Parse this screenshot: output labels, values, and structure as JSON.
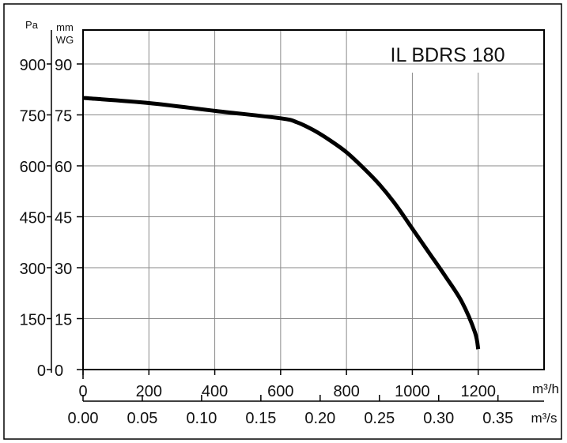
{
  "chart_data": {
    "type": "line",
    "title": "IL BDRS 180",
    "left_axis": {
      "unit": "Pa",
      "ticks": [
        0,
        150,
        300,
        450,
        600,
        750,
        900
      ]
    },
    "right_axis": {
      "unit_line1": "mm",
      "unit_line2": "WG",
      "ticks": [
        0,
        15,
        30,
        45,
        60,
        75,
        90
      ]
    },
    "x_axis_primary": {
      "unit": "m³/h",
      "ticks": [
        "0",
        "200",
        "400",
        "600",
        "800",
        "1000",
        "1200"
      ],
      "range": [
        0,
        1400
      ]
    },
    "x_axis_secondary": {
      "unit": "m³/s",
      "ticks": [
        "0.00",
        "0.05",
        "0.10",
        "0.15",
        "0.20",
        "0.25",
        "0.30",
        "0.35"
      ]
    },
    "ylim": [
      0,
      1000
    ],
    "grid": true,
    "series": [
      {
        "x": [
          0,
          200,
          400,
          600,
          650,
          700,
          750,
          800,
          850,
          900,
          950,
          1000,
          1050,
          1100,
          1150,
          1190,
          1200
        ],
        "y": [
          800,
          785,
          762,
          740,
          728,
          705,
          675,
          640,
          595,
          545,
          485,
          415,
          345,
          275,
          200,
          110,
          60
        ]
      }
    ]
  },
  "style": {
    "line_color": "#000000",
    "grid_color": "#8a8a8a",
    "axis_color": "#000000"
  }
}
